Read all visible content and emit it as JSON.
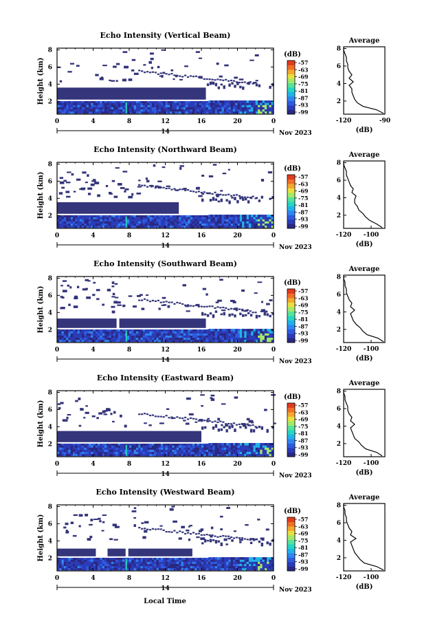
{
  "figure": {
    "xlabel": "Local Time"
  },
  "colorbar": {
    "unit": "(dB)",
    "ticks": [
      "-57",
      "-63",
      "-69",
      "-75",
      "-81",
      "-87",
      "-93",
      "-99"
    ],
    "colors": [
      "#2a2880",
      "#2b3cb8",
      "#2f5be0",
      "#2f86f0",
      "#22b3e8",
      "#27d6c2",
      "#58e39a",
      "#a6e86a",
      "#e8e040",
      "#f4a830",
      "#f07028",
      "#e03c20"
    ]
  },
  "chart_data": [
    {
      "type": "heatmap",
      "title": "Echo Intensity (Vertical Beam)",
      "ylabel": "Height (km)",
      "x_ticks": [
        "0",
        "4",
        "8",
        "12",
        "16",
        "20",
        "0"
      ],
      "x_range": [
        0,
        24
      ],
      "y_ticks": [
        "2",
        "4",
        "6",
        "8"
      ],
      "y_range": [
        0.5,
        8.2
      ],
      "date_day": "14",
      "date_month": "Nov 2023",
      "clim": [
        -99,
        -57
      ],
      "average_profile": {
        "title": "Average",
        "xlabel": "(dB)",
        "x_ticks": [
          "-120",
          "-90"
        ],
        "x_range": [
          -120,
          -90
        ],
        "y_ticks": [
          "2",
          "4",
          "6",
          "8"
        ],
        "height_km": [
          0.6,
          1.0,
          1.4,
          1.8,
          2.2,
          2.6,
          3.0,
          3.4,
          3.8,
          4.2,
          4.6,
          5.0,
          5.4,
          5.8,
          6.2,
          6.6,
          7.0,
          7.4,
          7.8,
          8.1
        ],
        "db": [
          -91,
          -96,
          -106,
          -110,
          -112,
          -113,
          -114,
          -114,
          -116,
          -113,
          -116,
          -114,
          -116,
          -117,
          -117,
          -118,
          -118,
          -119,
          -120,
          -120
        ]
      }
    },
    {
      "type": "heatmap",
      "title": "Echo Intensity (Northward Beam)",
      "ylabel": "Height (km)",
      "x_ticks": [
        "0",
        "4",
        "8",
        "12",
        "16",
        "20",
        "0"
      ],
      "x_range": [
        0,
        24
      ],
      "y_ticks": [
        "2",
        "4",
        "6",
        "8"
      ],
      "y_range": [
        0.5,
        8.2
      ],
      "date_day": "14",
      "date_month": "Nov 2023",
      "clim": [
        -99,
        -57
      ],
      "average_profile": {
        "title": "Average",
        "xlabel": "(dB)",
        "x_ticks": [
          "-120",
          "-100"
        ],
        "x_range": [
          -120,
          -90
        ],
        "y_ticks": [
          "2",
          "4",
          "6",
          "8"
        ],
        "height_km": [
          0.6,
          1.0,
          1.4,
          1.8,
          2.2,
          2.6,
          3.0,
          3.4,
          3.8,
          4.2,
          4.6,
          5.0,
          5.4,
          5.8,
          6.2,
          6.6,
          7.0,
          7.4,
          7.8,
          8.1
        ],
        "db": [
          -92,
          -96,
          -101,
          -104,
          -106,
          -109,
          -110,
          -112,
          -112,
          -111,
          -114,
          -113,
          -115,
          -116,
          -117,
          -118,
          -118,
          -119,
          -120,
          -120
        ]
      }
    },
    {
      "type": "heatmap",
      "title": "Echo Intensity (Southward Beam)",
      "ylabel": "Height (km)",
      "x_ticks": [
        "0",
        "4",
        "8",
        "12",
        "16",
        "20",
        "0"
      ],
      "x_range": [
        0,
        24
      ],
      "y_ticks": [
        "2",
        "4",
        "6",
        "8"
      ],
      "y_range": [
        0.5,
        8.2
      ],
      "date_day": "14",
      "date_month": "Nov 2023",
      "clim": [
        -99,
        -57
      ],
      "average_profile": {
        "title": "Average",
        "xlabel": "(dB)",
        "x_ticks": [
          "-120",
          "-100"
        ],
        "x_range": [
          -120,
          -90
        ],
        "y_ticks": [
          "2",
          "4",
          "6",
          "8"
        ],
        "height_km": [
          0.6,
          1.0,
          1.4,
          1.8,
          2.2,
          2.6,
          3.0,
          3.4,
          3.8,
          4.2,
          4.6,
          5.0,
          5.4,
          5.8,
          6.2,
          6.6,
          7.0,
          7.4,
          7.8,
          8.1
        ],
        "db": [
          -91,
          -95,
          -103,
          -106,
          -108,
          -111,
          -113,
          -114,
          -115,
          -112,
          -115,
          -114,
          -116,
          -117,
          -118,
          -118,
          -119,
          -119,
          -120,
          -120
        ]
      }
    },
    {
      "type": "heatmap",
      "title": "Echo Intensity (Eastward Beam)",
      "ylabel": "Height (km)",
      "x_ticks": [
        "0",
        "4",
        "8",
        "12",
        "16",
        "20",
        "0"
      ],
      "x_range": [
        0,
        24
      ],
      "y_ticks": [
        "2",
        "4",
        "6",
        "8"
      ],
      "y_range": [
        0.5,
        8.2
      ],
      "date_day": "14",
      "date_month": "Nov 2023",
      "clim": [
        -99,
        -57
      ],
      "average_profile": {
        "title": "Average",
        "xlabel": "(dB)",
        "x_ticks": [
          "-120",
          "-100"
        ],
        "x_range": [
          -120,
          -90
        ],
        "y_ticks": [
          "2",
          "4",
          "6",
          "8"
        ],
        "height_km": [
          0.6,
          1.0,
          1.4,
          1.8,
          2.2,
          2.6,
          3.0,
          3.4,
          3.8,
          4.2,
          4.6,
          5.0,
          5.4,
          5.8,
          6.2,
          6.6,
          7.0,
          7.4,
          7.8,
          8.1
        ],
        "db": [
          -92,
          -96,
          -104,
          -107,
          -109,
          -112,
          -113,
          -114,
          -115,
          -112,
          -115,
          -114,
          -116,
          -117,
          -117,
          -118,
          -119,
          -119,
          -120,
          -120
        ]
      }
    },
    {
      "type": "heatmap",
      "title": "Echo Intensity (Westward Beam)",
      "ylabel": "Height (km)",
      "x_ticks": [
        "0",
        "4",
        "8",
        "12",
        "16",
        "20",
        "0"
      ],
      "x_range": [
        0,
        24
      ],
      "y_ticks": [
        "2",
        "4",
        "6",
        "8"
      ],
      "y_range": [
        0.5,
        8.2
      ],
      "date_day": "14",
      "date_month": "Nov 2023",
      "clim": [
        -99,
        -57
      ],
      "average_profile": {
        "title": "Average",
        "xlabel": "(dB)",
        "x_ticks": [
          "-120",
          "-100"
        ],
        "x_range": [
          -120,
          -90
        ],
        "y_ticks": [
          "2",
          "4",
          "6",
          "8"
        ],
        "height_km": [
          0.6,
          1.0,
          1.4,
          1.8,
          2.2,
          2.6,
          3.0,
          3.4,
          3.8,
          4.2,
          4.6,
          5.0,
          5.4,
          5.8,
          6.2,
          6.6,
          7.0,
          7.4,
          7.8,
          8.1
        ],
        "db": [
          -91,
          -96,
          -105,
          -108,
          -110,
          -112,
          -113,
          -114,
          -115,
          -111,
          -115,
          -114,
          -116,
          -117,
          -118,
          -118,
          -119,
          -119,
          -120,
          -120
        ]
      }
    }
  ]
}
